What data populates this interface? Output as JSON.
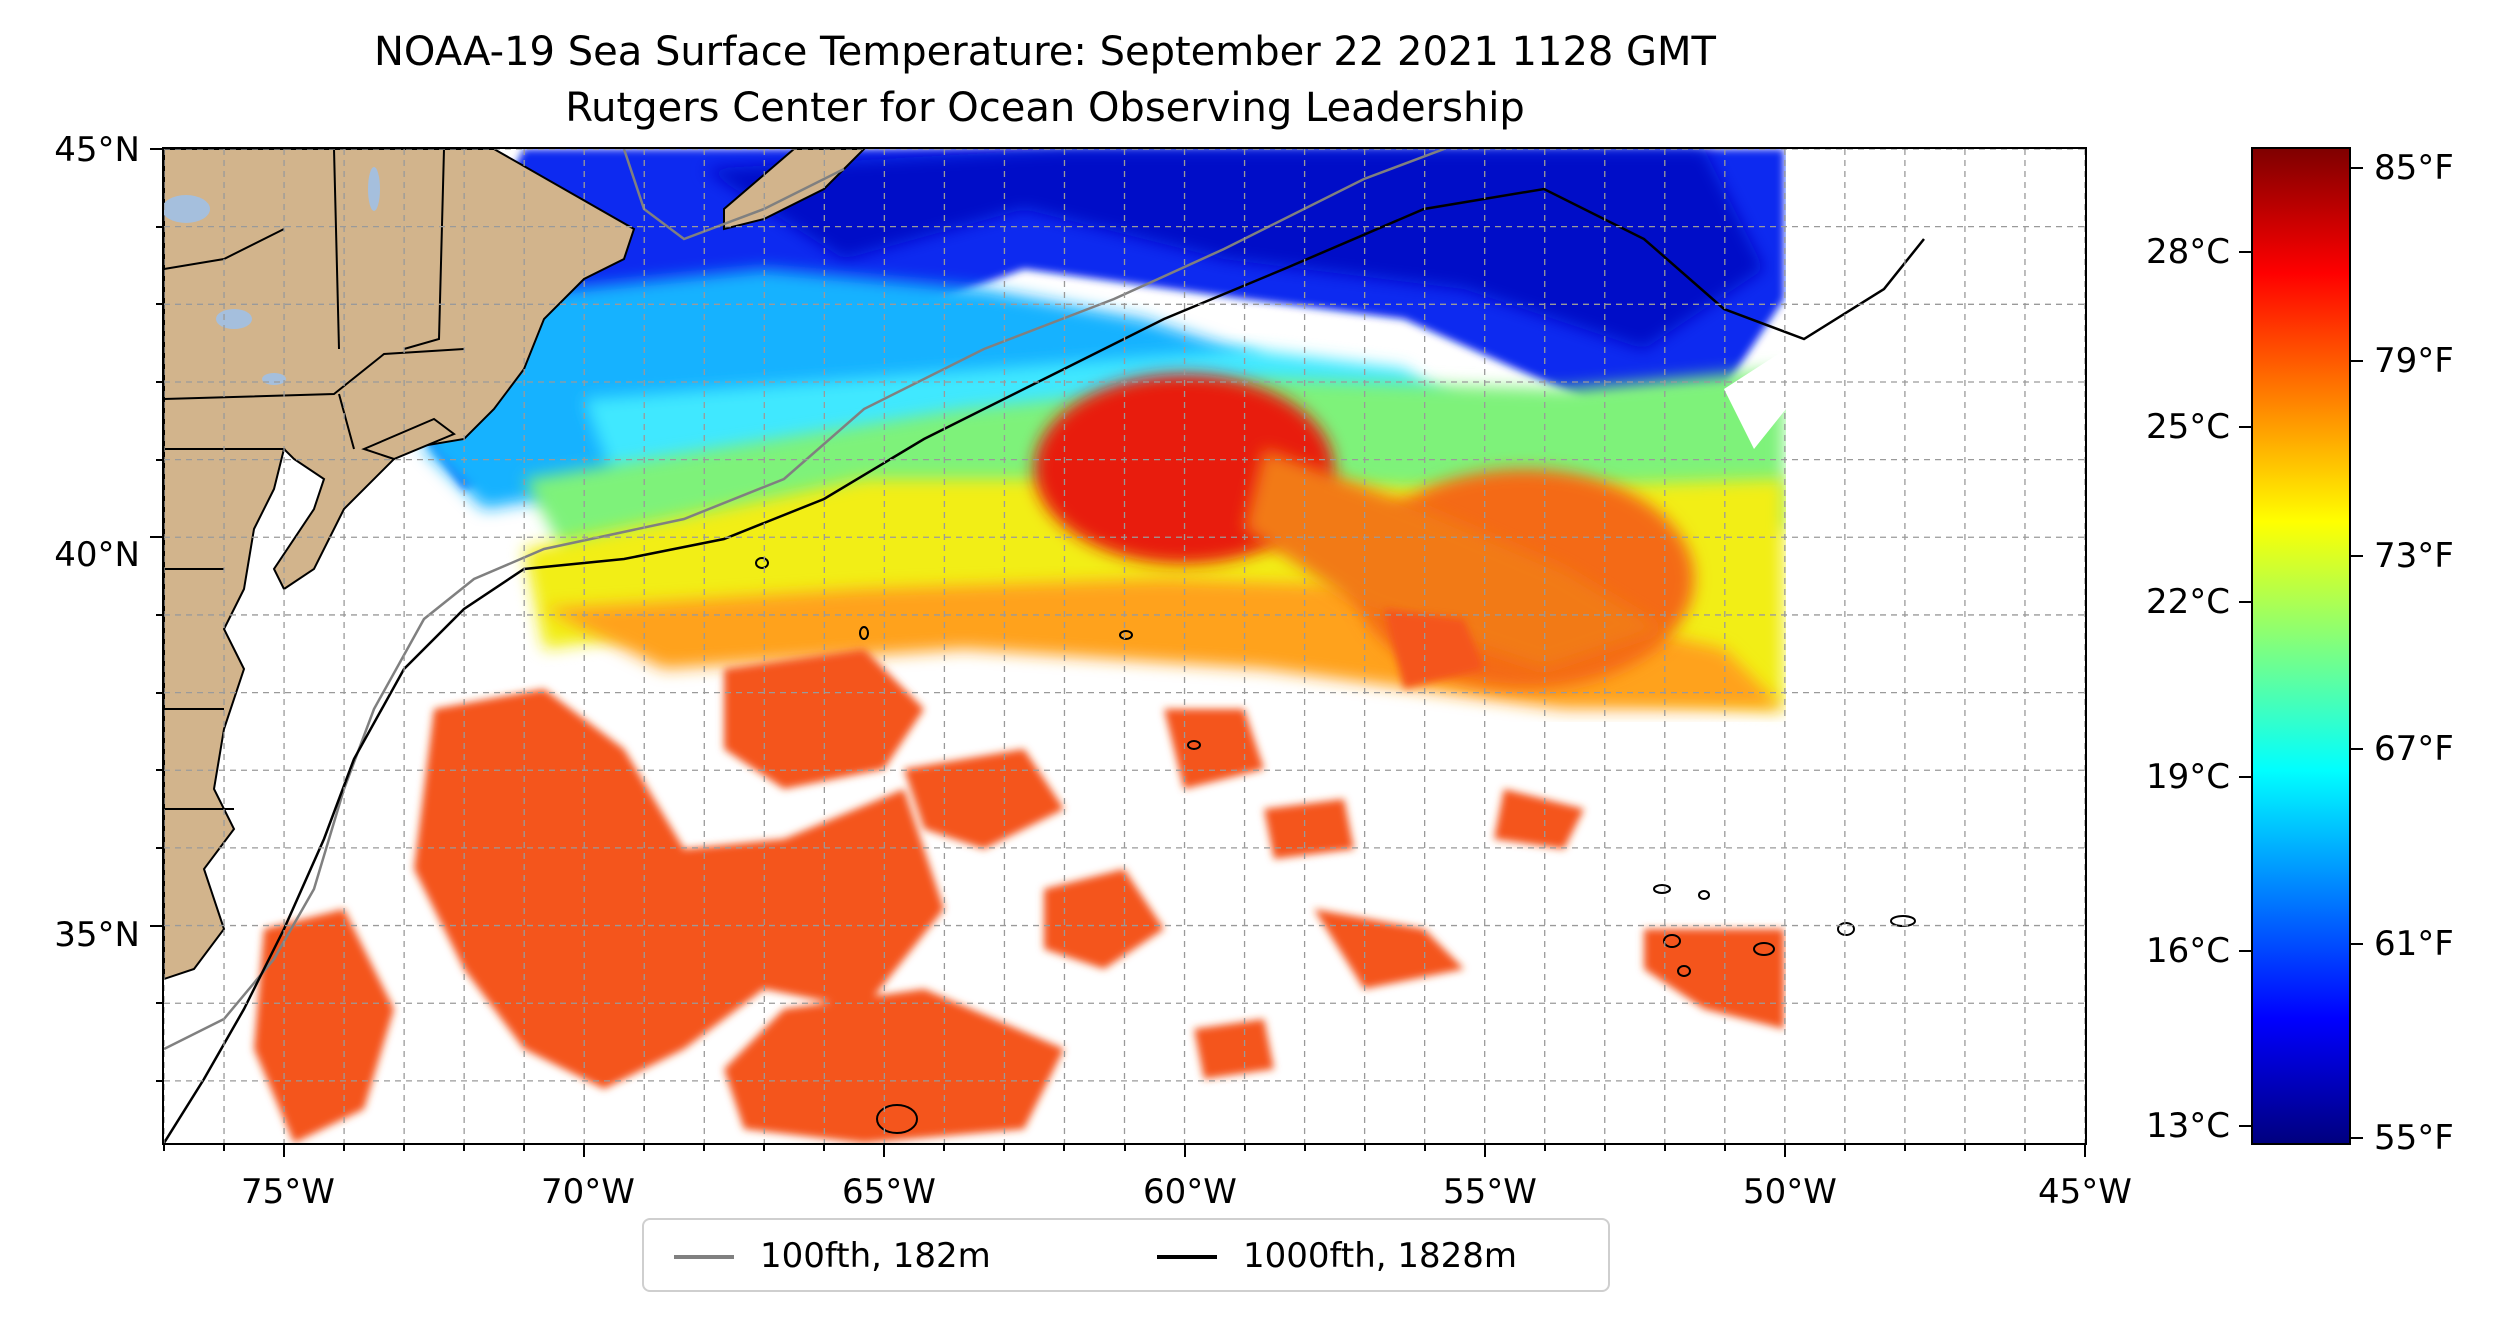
{
  "title": "NOAA-19 Sea Surface Temperature: September 22 2021 1128 GMT",
  "subtitle": "Rutgers Center for Ocean Observing Leadership",
  "map": {
    "extent": {
      "lon_min": -77,
      "lon_max": -45,
      "lat_min": 32.2,
      "lat_max": 45
    },
    "lon_ticks": [
      -75,
      -70,
      -65,
      -60,
      -55,
      -50,
      -45
    ],
    "lon_tick_labels": [
      "75°W",
      "70°W",
      "65°W",
      "60°W",
      "55°W",
      "50°W",
      "45°W"
    ],
    "lat_ticks": [
      35,
      40,
      45
    ],
    "lat_tick_labels": [
      "35°N",
      "40°N",
      "45°N"
    ],
    "gridlines": true,
    "colors": {
      "land": "#d2b48c",
      "lakes": "#a5bfdd",
      "no_data": "#ffffff",
      "isobath_100": "#808080",
      "isobath_1000": "#000000"
    }
  },
  "legend": {
    "position": "bottom-center",
    "items": [
      {
        "label": "100fth, 182m",
        "color": "#808080"
      },
      {
        "label": "1000fth, 1828m",
        "color": "#000000"
      }
    ]
  },
  "colorbar": {
    "colormap": "jet",
    "fahrenheit_labels": [
      "85°F",
      "79°F",
      "73°F",
      "67°F",
      "61°F",
      "55°F"
    ],
    "celsius_labels": [
      "28°C",
      "25°C",
      "22°C",
      "19°C",
      "16°C",
      "13°C"
    ]
  }
}
